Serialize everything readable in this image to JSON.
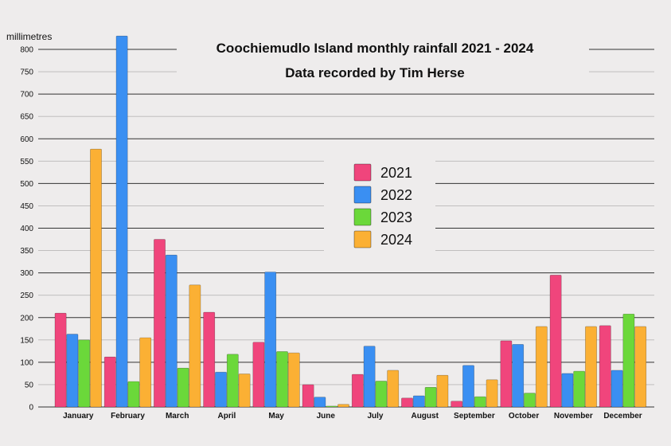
{
  "chart_data": {
    "type": "bar",
    "title": "Coochiemudlo Island monthly rainfall 2021 - 2024",
    "subtitle": "Data recorded by Tim Herse",
    "ylabel": "millimetres",
    "xlabel": "",
    "ylim": [
      0,
      830
    ],
    "yticks": [
      0,
      50,
      100,
      150,
      200,
      250,
      300,
      350,
      400,
      450,
      500,
      550,
      600,
      650,
      700,
      750,
      800
    ],
    "grid": true,
    "legend_position": "center",
    "categories": [
      "January",
      "February",
      "March",
      "April",
      "May",
      "June",
      "July",
      "August",
      "September",
      "October",
      "November",
      "December"
    ],
    "series": [
      {
        "name": "2021",
        "color": "#f0457c",
        "values": [
          210,
          112,
          375,
          212,
          145,
          50,
          73,
          20,
          13,
          148,
          295,
          182
        ]
      },
      {
        "name": "2022",
        "color": "#3a8ff2",
        "values": [
          163,
          830,
          340,
          78,
          302,
          22,
          136,
          25,
          93,
          140,
          75,
          82
        ]
      },
      {
        "name": "2023",
        "color": "#6bd83a",
        "values": [
          150,
          57,
          87,
          118,
          124,
          2,
          58,
          44,
          23,
          31,
          80,
          208
        ]
      },
      {
        "name": "2024",
        "color": "#fbb034",
        "values": [
          577,
          155,
          273,
          74,
          121,
          6,
          82,
          71,
          61,
          180,
          180,
          180
        ]
      }
    ]
  }
}
